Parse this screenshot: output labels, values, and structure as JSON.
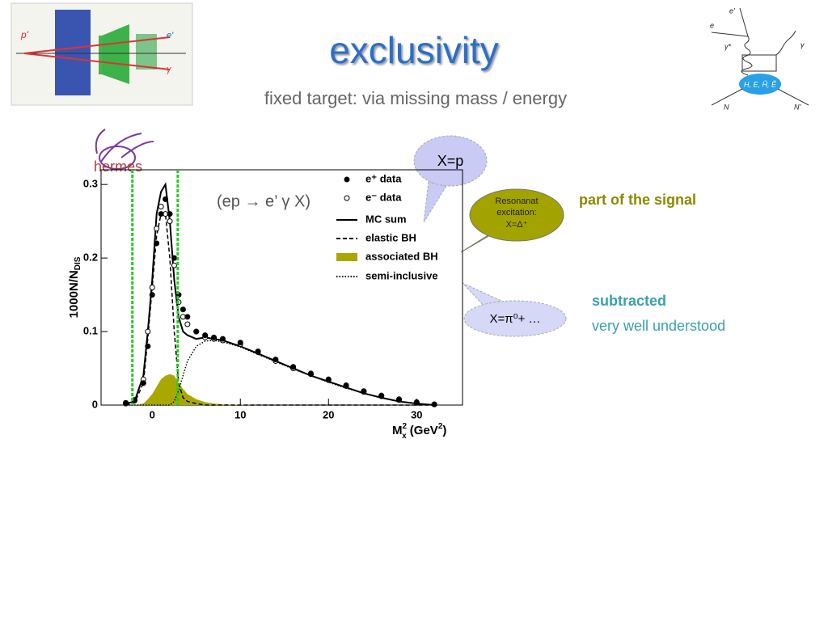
{
  "slide": {
    "title": "exclusivity",
    "subtitle": "fixed target: via missing mass / energy",
    "logo": "hermes",
    "reaction": "(ep → e’ γ X)",
    "callout_proton": "X=p",
    "callout_resonance": [
      "Resonanat",
      "excitation:",
      "X=Δ⁺"
    ],
    "callout_pion": "X=π⁰+ …",
    "note_signal": "part of the signal",
    "note_subtracted": "subtracted",
    "note_understood": "very well understood",
    "diagram_labels": {
      "e_in": "e",
      "e_out": "e'",
      "gamma_virtual": "γ*",
      "gamma_real": "γ",
      "blob": "H, E, H̃, Ẽ",
      "n_in": "N",
      "n_out": "N'"
    },
    "detector_labels": {
      "p": "p'",
      "e": "e'",
      "g": "γ"
    }
  },
  "chart_data": {
    "type": "line",
    "y_label": "1000N/N",
    "y_label_sub": "DIS",
    "x_label": "M",
    "x_label_sub": "x",
    "x_label_sup": "2",
    "x_label_unit": " (GeV",
    "x_label_unit_sup": "2",
    "x_label_end": ")",
    "xlim": [
      -5.8,
      35.2
    ],
    "ylim": [
      0,
      0.32
    ],
    "xticks": [
      0,
      10,
      20,
      30
    ],
    "yticks": [
      0,
      0.1,
      0.2,
      0.3
    ],
    "cut_lines": [
      -2.25,
      2.9
    ],
    "cut_color": "#22cc22",
    "x": [
      -3,
      -2,
      -1,
      -0.5,
      0,
      0.5,
      1,
      1.5,
      2,
      2.5,
      3,
      3.5,
      4,
      5,
      6,
      7,
      8,
      10,
      12,
      14,
      16,
      18,
      20,
      22,
      24,
      26,
      28,
      30,
      32
    ],
    "series": [
      {
        "name": "e⁺ data",
        "style": "filled-points",
        "color": "#000000",
        "values": [
          0.003,
          0.006,
          0.03,
          0.08,
          0.15,
          0.22,
          0.26,
          0.28,
          0.26,
          0.2,
          0.15,
          0.13,
          0.12,
          0.1,
          0.095,
          0.092,
          0.09,
          0.085,
          0.073,
          0.062,
          0.052,
          0.042,
          0.034,
          0.026,
          0.018,
          0.012,
          0.007,
          0.003,
          0.001
        ]
      },
      {
        "name": "e⁻ data",
        "style": "open-points",
        "color": "#000000",
        "values": [
          0.002,
          0.007,
          0.035,
          0.1,
          0.16,
          0.24,
          0.27,
          0.26,
          0.25,
          0.19,
          0.14,
          0.12,
          0.11,
          0.1,
          0.092,
          0.09,
          0.088,
          0.083,
          0.072,
          0.06,
          0.05,
          0.043,
          0.035,
          0.027,
          0.019,
          0.013,
          0.008,
          0.004,
          0.001
        ]
      },
      {
        "name": "MC sum",
        "style": "solid",
        "color": "#000000",
        "values": [
          0.002,
          0.005,
          0.04,
          0.1,
          0.17,
          0.26,
          0.29,
          0.3,
          0.25,
          0.17,
          0.12,
          0.1,
          0.095,
          0.09,
          0.092,
          0.09,
          0.088,
          0.08,
          0.07,
          0.06,
          0.05,
          0.04,
          0.032,
          0.024,
          0.016,
          0.01,
          0.005,
          0.002,
          0
        ]
      },
      {
        "name": "elastic BH",
        "style": "dashed",
        "color": "#000000",
        "values": [
          0,
          0.003,
          0.03,
          0.09,
          0.16,
          0.23,
          0.26,
          0.26,
          0.2,
          0.1,
          0.03,
          0.01,
          0.005,
          0.002,
          0,
          0,
          0,
          0,
          0,
          0,
          0,
          0,
          0,
          0,
          0,
          0,
          0,
          0,
          0
        ]
      },
      {
        "name": "associated BH",
        "style": "area",
        "color": "#a8a800",
        "values": [
          0,
          0,
          0.002,
          0.008,
          0.015,
          0.025,
          0.035,
          0.04,
          0.042,
          0.04,
          0.03,
          0.022,
          0.015,
          0.008,
          0.004,
          0.002,
          0.001,
          0.0005,
          0,
          0,
          0,
          0,
          0,
          0,
          0,
          0,
          0,
          0,
          0
        ]
      },
      {
        "name": "semi-inclusive",
        "style": "dotted",
        "color": "#000000",
        "values": [
          0,
          0,
          0,
          0,
          0,
          0,
          0,
          0,
          0,
          0.005,
          0.02,
          0.04,
          0.06,
          0.08,
          0.087,
          0.088,
          0.086,
          0.079,
          0.069,
          0.059,
          0.049,
          0.04,
          0.031,
          0.023,
          0.016,
          0.01,
          0.005,
          0.002,
          0
        ]
      }
    ]
  }
}
